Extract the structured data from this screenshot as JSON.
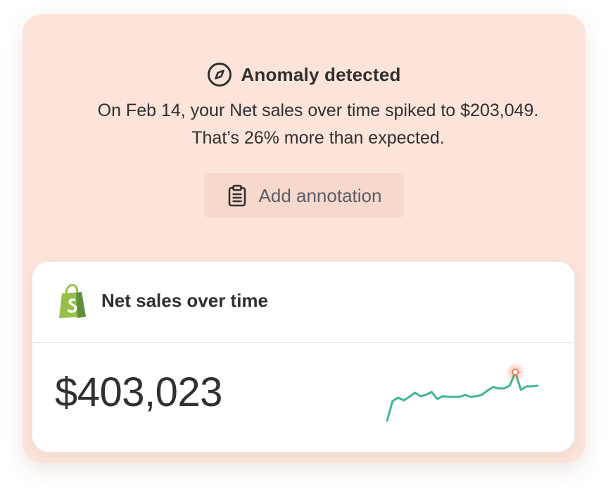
{
  "anomaly": {
    "icon": "compass-icon",
    "title": "Anomaly detected",
    "description": "On Feb 14, your Net sales over time spiked to $203,049. That’s 26% more than expected."
  },
  "annotation_button": {
    "icon": "clipboard-icon",
    "label": "Add annotation"
  },
  "metric_card": {
    "logo": "shopify-logo",
    "title": "Net sales over time",
    "value": "$403,023"
  },
  "colors": {
    "background": "#fde4da",
    "button": "#f6d8cc",
    "sparkline": "#3fb98a",
    "anomaly_dot": "#f06a4a",
    "shopify_green": "#95bf47"
  },
  "chart_data": {
    "type": "line",
    "values": [
      0,
      28,
      33,
      29,
      34,
      40,
      35,
      37,
      41,
      31,
      35,
      34,
      34,
      34,
      37,
      34,
      35,
      37,
      43,
      48,
      46,
      46,
      50,
      69,
      44,
      49,
      49,
      50
    ],
    "anomaly_index": 23,
    "ylim": [
      0,
      70
    ]
  }
}
